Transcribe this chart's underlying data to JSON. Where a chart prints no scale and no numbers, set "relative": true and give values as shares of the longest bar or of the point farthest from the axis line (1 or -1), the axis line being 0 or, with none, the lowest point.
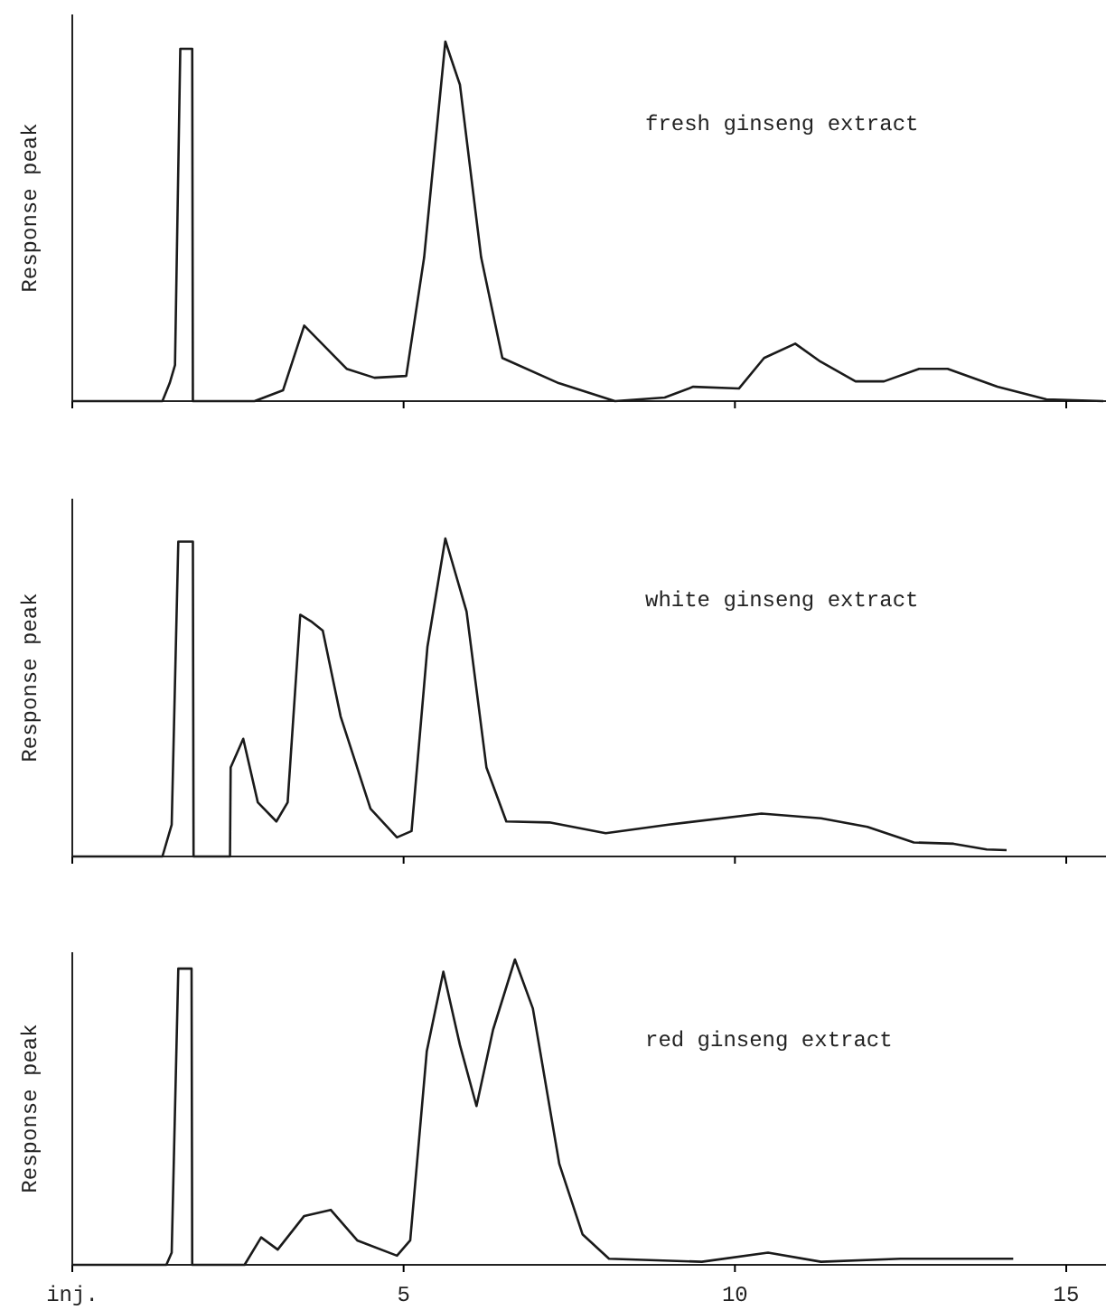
{
  "chart_data": [
    {
      "type": "line",
      "title": "fresh ginseng extract",
      "ylabel": "Response peak",
      "relative": true,
      "color": "#1a1a1a",
      "xlim": [
        0,
        15.6
      ],
      "xticks": [
        {
          "value": 0,
          "label": null
        },
        {
          "value": 5,
          "label": null
        },
        {
          "value": 10,
          "label": null
        },
        {
          "value": 15,
          "label": null
        }
      ],
      "tick_labels": false,
      "x": [
        0,
        1.36,
        1.47,
        1.55,
        1.63,
        1.81,
        1.82,
        2.75,
        3.18,
        3.5,
        4.14,
        4.56,
        5.04,
        5.31,
        5.63,
        5.85,
        6.17,
        6.49,
        7.34,
        8.19,
        8.94,
        9.37,
        10.06,
        10.44,
        10.91,
        11.29,
        11.82,
        12.25,
        12.78,
        13.21,
        13.96,
        14.7,
        15.56
      ],
      "values": [
        0,
        0,
        0.05,
        0.1,
        0.98,
        0.98,
        0,
        0,
        0.03,
        0.21,
        0.09,
        0.065,
        0.07,
        0.4,
        1,
        0.88,
        0.4,
        0.12,
        0.05,
        0,
        0.01,
        0.04,
        0.035,
        0.12,
        0.16,
        0.11,
        0.055,
        0.055,
        0.09,
        0.09,
        0.04,
        0.005,
        0
      ]
    },
    {
      "type": "line",
      "title": "white ginseng extract",
      "ylabel": "Response peak",
      "relative": true,
      "color": "#1a1a1a",
      "xlim": [
        0,
        15.6
      ],
      "xticks": [
        {
          "value": 0,
          "label": null
        },
        {
          "value": 5,
          "label": null
        },
        {
          "value": 10,
          "label": null
        },
        {
          "value": 15,
          "label": null
        }
      ],
      "tick_labels": false,
      "x": [
        0,
        1.36,
        1.5,
        1.6,
        1.82,
        1.83,
        2.38,
        2.39,
        2.58,
        2.8,
        3.08,
        3.25,
        3.44,
        3.6,
        3.78,
        4.05,
        4.5,
        4.9,
        5.12,
        5.36,
        5.63,
        5.95,
        6.25,
        6.55,
        7.2,
        8.05,
        9.0,
        10.4,
        11.3,
        12.0,
        12.7,
        13.3,
        13.8,
        14.1
      ],
      "values": [
        0,
        0,
        0.1,
        0.99,
        0.99,
        0,
        0,
        0.28,
        0.37,
        0.17,
        0.11,
        0.17,
        0.76,
        0.74,
        0.71,
        0.44,
        0.15,
        0.06,
        0.08,
        0.66,
        1,
        0.77,
        0.28,
        0.11,
        0.107,
        0.073,
        0.1,
        0.135,
        0.12,
        0.093,
        0.044,
        0.04,
        0.022,
        0.02
      ]
    },
    {
      "type": "line",
      "title": "red ginseng extract",
      "ylabel": "Response peak",
      "relative": true,
      "color": "#1a1a1a",
      "xlim": [
        0,
        15.6
      ],
      "xticks": [
        {
          "value": 0,
          "label": "inj."
        },
        5,
        10,
        15
      ],
      "tick_labels": "x",
      "x": [
        0,
        1.42,
        1.5,
        1.6,
        1.8,
        1.81,
        2.6,
        2.85,
        3.1,
        3.5,
        3.9,
        4.3,
        4.9,
        5.1,
        5.35,
        5.6,
        5.85,
        6.1,
        6.35,
        6.68,
        6.95,
        7.35,
        7.7,
        8.1,
        9.5,
        10.5,
        11.3,
        12.5,
        14.2
      ],
      "values": [
        0,
        0,
        0.04,
        0.97,
        0.97,
        0,
        0,
        0.09,
        0.05,
        0.16,
        0.18,
        0.08,
        0.03,
        0.08,
        0.7,
        0.96,
        0.72,
        0.52,
        0.77,
        1,
        0.84,
        0.33,
        0.1,
        0.02,
        0.01,
        0.04,
        0.01,
        0.02,
        0.02
      ]
    }
  ]
}
